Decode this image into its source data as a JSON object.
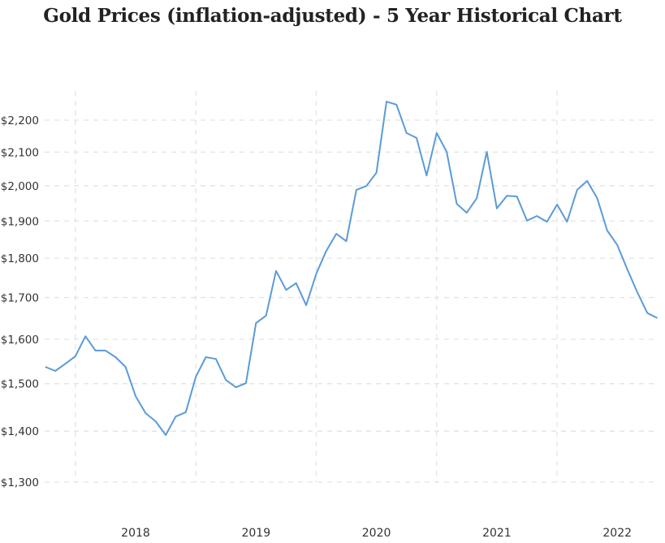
{
  "chart_data": {
    "type": "line",
    "title": "Gold Prices (inflation-adjusted) - 5 Year Historical Chart",
    "xlabel": "",
    "ylabel": "",
    "y_scale": "log",
    "ylim": [
      1300,
      2300
    ],
    "grid": true,
    "line_color": "#5b9bd8",
    "y_ticks": [
      1300,
      1400,
      1500,
      1600,
      1700,
      1800,
      1900,
      2000,
      2100,
      2200
    ],
    "y_tick_labels": [
      "$1,300",
      "$1,400",
      "$1,500",
      "$1,600",
      "$1,700",
      "$1,800",
      "$1,900",
      "$2,000",
      "$2,100",
      "$2,200"
    ],
    "x_tick_labels": [
      "2018",
      "2019",
      "2020",
      "2021",
      "2022"
    ],
    "x_start": "2017-04",
    "x_interval": "monthly",
    "series": [
      {
        "name": "Gold price (inflation-adjusted)",
        "values": [
          1537,
          1528,
          1544,
          1561,
          1607,
          1574,
          1574,
          1559,
          1537,
          1473,
          1437,
          1420,
          1392,
          1430,
          1439,
          1515,
          1559,
          1555,
          1508,
          1492,
          1501,
          1638,
          1656,
          1767,
          1719,
          1736,
          1681,
          1760,
          1819,
          1865,
          1845,
          1988,
          1999,
          2038,
          2260,
          2250,
          2159,
          2144,
          2030,
          2159,
          2101,
          1948,
          1923,
          1964,
          2101,
          1935,
          1971,
          1969,
          1901,
          1914,
          1898,
          1946,
          1898,
          1988,
          2014,
          1964,
          1874,
          1835,
          1771,
          1713,
          1662,
          1650
        ]
      }
    ]
  }
}
